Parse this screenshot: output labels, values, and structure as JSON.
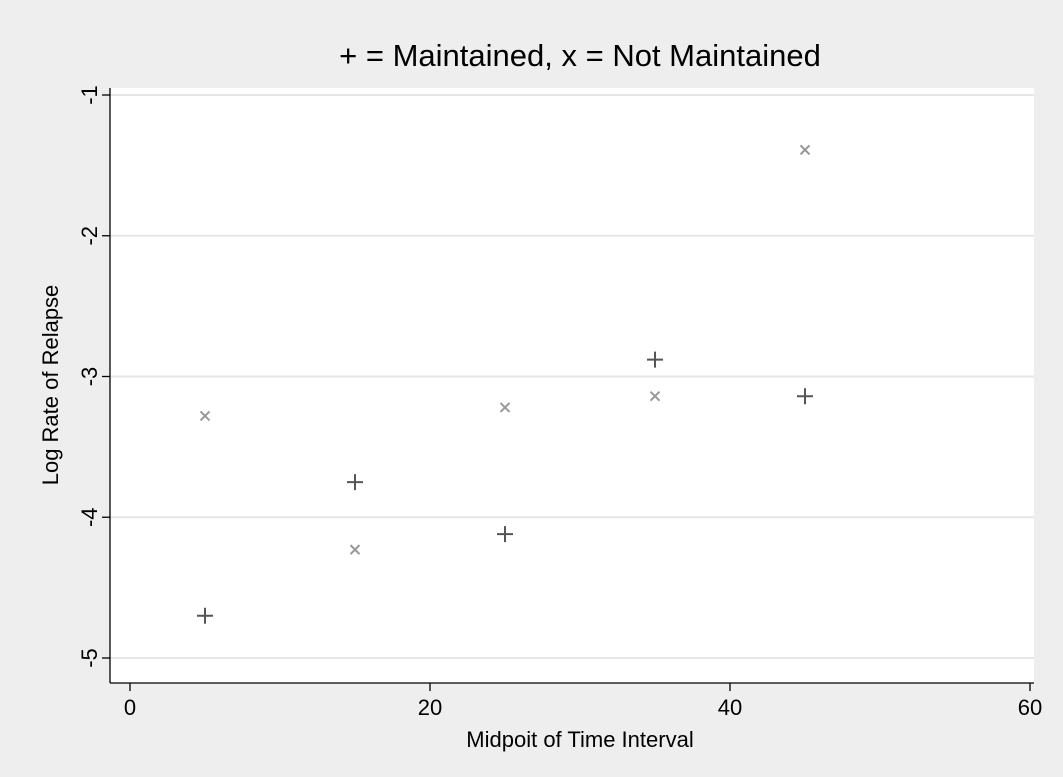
{
  "chart_data": {
    "type": "scatter",
    "title": "+ = Maintained, x = Not Maintained",
    "xlabel": "Midpoit of Time Interval",
    "ylabel": "Log Rate of Relapse",
    "xlim": [
      0,
      60
    ],
    "ylim": [
      -5,
      -1
    ],
    "xticks": [
      0,
      20,
      40,
      60
    ],
    "yticks": [
      -5,
      -4,
      -3,
      -2,
      -1
    ],
    "grid": true,
    "series": [
      {
        "marker": "plus",
        "color": "#555555",
        "points": [
          {
            "x": 5,
            "y": -4.7
          },
          {
            "x": 15,
            "y": -3.75
          },
          {
            "x": 25,
            "y": -4.12
          },
          {
            "x": 35,
            "y": -2.88
          },
          {
            "x": 45,
            "y": -3.14
          }
        ]
      },
      {
        "marker": "x",
        "color": "#999999",
        "points": [
          {
            "x": 5,
            "y": -3.28
          },
          {
            "x": 15,
            "y": -4.23
          },
          {
            "x": 25,
            "y": -3.22
          },
          {
            "x": 35,
            "y": -3.14
          },
          {
            "x": 45,
            "y": -1.39
          }
        ]
      }
    ]
  }
}
